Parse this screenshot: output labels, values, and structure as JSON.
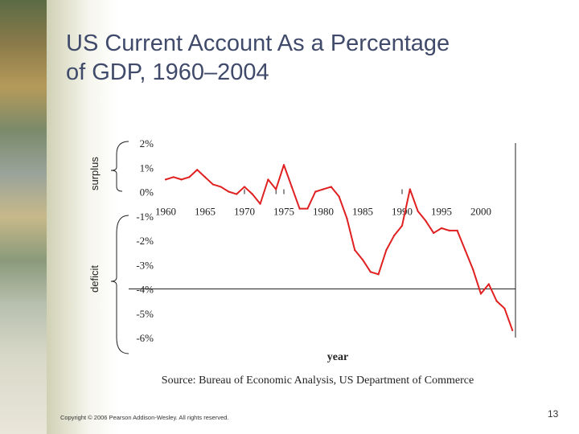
{
  "slide": {
    "title_line1": "US Current Account As a Percentage",
    "title_line2": "of GDP, 1960–2004",
    "footer": "Copyright © 2006 Pearson Addison-Wesley. All rights reserved.",
    "page_number": "13",
    "surplus_label": "surplus",
    "deficit_label": "deficit"
  },
  "chart_data": {
    "type": "line",
    "title": "US Current Account As a Percentage of GDP, 1960–2004",
    "xlabel": "year",
    "ylabel": "",
    "source": "Source:  Bureau of Economic Analysis, US Department of Commerce",
    "xlim": [
      1959,
      2005
    ],
    "ylim": [
      -6,
      2
    ],
    "x_ticks": [
      1960,
      1965,
      1970,
      1975,
      1980,
      1985,
      1990,
      1995,
      2000
    ],
    "y_ticks": [
      2,
      1,
      0,
      -1,
      -2,
      -3,
      -4,
      -5,
      -6
    ],
    "y_tick_labels": [
      "2%",
      "1%",
      "0%",
      "-1%",
      "-2%",
      "-3%",
      "-4%",
      "-5%",
      "-6%"
    ],
    "recession_marks": [
      1970,
      1974,
      1975,
      1990
    ],
    "series": [
      {
        "name": "US current account (% of GDP)",
        "color": "#e02020",
        "x": [
          1960,
          1961,
          1962,
          1963,
          1964,
          1965,
          1966,
          1967,
          1968,
          1969,
          1970,
          1971,
          1972,
          1973,
          1974,
          1975,
          1976,
          1977,
          1978,
          1979,
          1980,
          1981,
          1982,
          1983,
          1984,
          1985,
          1986,
          1987,
          1988,
          1989,
          1990,
          1991,
          1992,
          1993,
          1994,
          1995,
          1996,
          1997,
          1998,
          1999,
          2000,
          2001,
          2002,
          2003,
          2004
        ],
        "values": [
          0.5,
          0.6,
          0.5,
          0.6,
          0.9,
          0.6,
          0.3,
          0.2,
          0.0,
          -0.1,
          0.2,
          -0.1,
          -0.5,
          0.5,
          0.1,
          1.1,
          0.2,
          -0.7,
          -0.7,
          0.0,
          0.1,
          0.2,
          -0.2,
          -1.1,
          -2.4,
          -2.8,
          -3.3,
          -3.4,
          -2.4,
          -1.8,
          -1.4,
          0.1,
          -0.8,
          -1.2,
          -1.7,
          -1.5,
          -1.6,
          -1.6,
          -2.4,
          -3.2,
          -4.2,
          -3.8,
          -4.5,
          -4.8,
          -5.7
        ]
      }
    ]
  }
}
